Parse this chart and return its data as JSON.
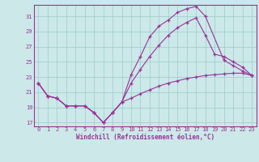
{
  "xlabel": "Windchill (Refroidissement éolien,°C)",
  "background_color": "#cce8e8",
  "line_color": "#993399",
  "grid_color": "#99cccc",
  "spine_color": "#993399",
  "xlim": [
    -0.5,
    23.5
  ],
  "ylim": [
    16.5,
    32.5
  ],
  "xticks": [
    0,
    1,
    2,
    3,
    4,
    5,
    6,
    7,
    8,
    9,
    10,
    11,
    12,
    13,
    14,
    15,
    16,
    17,
    18,
    19,
    20,
    21,
    22,
    23
  ],
  "yticks": [
    17,
    19,
    21,
    23,
    25,
    27,
    29,
    31
  ],
  "curve1_x": [
    0,
    1,
    2,
    3,
    4,
    5,
    6,
    7,
    8,
    9,
    10,
    11,
    12,
    13,
    14,
    15,
    16,
    17,
    18,
    20,
    21,
    22,
    23
  ],
  "curve1_y": [
    22.2,
    20.5,
    20.2,
    19.2,
    19.2,
    19.2,
    18.3,
    17.0,
    18.3,
    19.7,
    23.3,
    25.7,
    28.3,
    29.7,
    30.5,
    31.5,
    32.0,
    32.3,
    31.0,
    25.2,
    24.5,
    23.8,
    23.2
  ],
  "curve2_x": [
    0,
    1,
    2,
    3,
    4,
    5,
    6,
    7,
    8,
    9,
    10,
    11,
    12,
    13,
    14,
    15,
    16,
    17,
    18,
    19,
    20,
    21,
    22,
    23
  ],
  "curve2_y": [
    22.2,
    20.5,
    20.2,
    19.2,
    19.2,
    19.2,
    18.3,
    17.0,
    18.3,
    19.7,
    22.2,
    24.0,
    25.7,
    27.2,
    28.5,
    29.5,
    30.2,
    30.8,
    28.5,
    26.0,
    25.7,
    25.0,
    24.3,
    23.2
  ],
  "curve3_x": [
    0,
    1,
    2,
    3,
    4,
    5,
    6,
    7,
    8,
    9,
    10,
    11,
    12,
    13,
    14,
    15,
    16,
    17,
    18,
    19,
    20,
    21,
    22,
    23
  ],
  "curve3_y": [
    22.2,
    20.5,
    20.2,
    19.2,
    19.2,
    19.2,
    18.3,
    17.0,
    18.3,
    19.7,
    20.2,
    20.8,
    21.3,
    21.8,
    22.2,
    22.5,
    22.8,
    23.0,
    23.2,
    23.3,
    23.4,
    23.5,
    23.5,
    23.2
  ],
  "tick_fontsize": 5,
  "xlabel_fontsize": 5.5
}
